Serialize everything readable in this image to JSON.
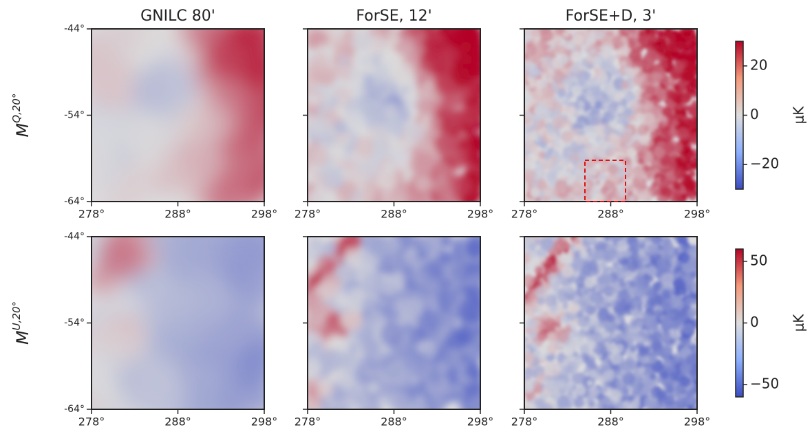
{
  "chart_data": {
    "type": "heatmap-grid",
    "columns": [
      "GNILC 80'",
      "ForSE, 12'",
      "ForSE+D, 3'"
    ],
    "rows": [
      {
        "base": "M",
        "sup": "Q,20°"
      },
      {
        "base": "M",
        "sup": "U,20°"
      }
    ],
    "xlim": [
      278,
      298
    ],
    "xticks": [
      {
        "value": 278,
        "label": "278°"
      },
      {
        "value": 288,
        "label": "288°"
      },
      {
        "value": 298,
        "label": "298°"
      }
    ],
    "ylim": [
      -64,
      -44
    ],
    "yticks": [
      {
        "value": -64,
        "label": "-64°"
      },
      {
        "value": -54,
        "label": "-54°"
      },
      {
        "value": -44,
        "label": "-44°"
      }
    ],
    "colorbars": [
      {
        "label": "μK",
        "lim": [
          -30,
          30
        ],
        "ticks": [
          {
            "value": -20,
            "label": "−20"
          },
          0,
          20
        ]
      },
      {
        "label": "μK",
        "lim": [
          -60,
          60
        ],
        "ticks": [
          {
            "value": -50,
            "label": "−50"
          },
          0,
          50
        ]
      }
    ]
  }
}
